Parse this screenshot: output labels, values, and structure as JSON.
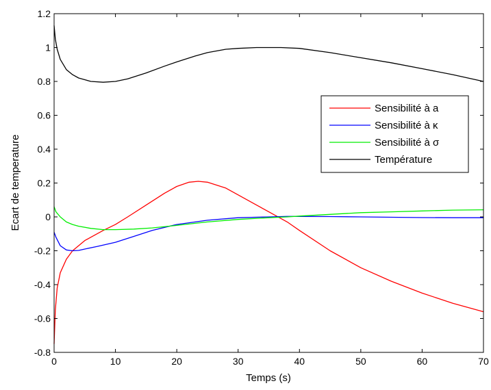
{
  "chart_data": {
    "type": "line",
    "title": "",
    "xlabel": "Temps (s)",
    "ylabel": "Ecart de temperature",
    "xlim": [
      0,
      70
    ],
    "ylim": [
      -0.8,
      1.2
    ],
    "xticks": [
      0,
      10,
      20,
      30,
      40,
      50,
      60,
      70
    ],
    "yticks": [
      -0.8,
      -0.6,
      -0.4,
      -0.2,
      0,
      0.2,
      0.4,
      0.6,
      0.8,
      1,
      1.2
    ],
    "grid": false,
    "legend_position": "right",
    "series": [
      {
        "name": "Sensibilité à a",
        "color": "#ff0000",
        "x": [
          0,
          0.2,
          0.5,
          1,
          2,
          3,
          4,
          5,
          6,
          8,
          10,
          12,
          15,
          18,
          20,
          22,
          23.5,
          25,
          28,
          30,
          33,
          35,
          38,
          40,
          45,
          50,
          55,
          60,
          65,
          70
        ],
        "y": [
          -0.75,
          -0.55,
          -0.42,
          -0.33,
          -0.25,
          -0.2,
          -0.17,
          -0.14,
          -0.12,
          -0.08,
          -0.045,
          0.0,
          0.07,
          0.14,
          0.18,
          0.205,
          0.21,
          0.205,
          0.17,
          0.13,
          0.07,
          0.03,
          -0.03,
          -0.08,
          -0.2,
          -0.3,
          -0.38,
          -0.45,
          -0.51,
          -0.56
        ]
      },
      {
        "name": "Sensibilité à κ",
        "color": "#0000ff",
        "x": [
          0,
          0.3,
          1,
          2,
          3,
          4,
          5,
          7,
          10,
          13,
          16,
          20,
          25,
          30,
          35,
          38,
          40,
          45,
          50,
          55,
          60,
          65,
          70
        ],
        "y": [
          -0.09,
          -0.12,
          -0.17,
          -0.195,
          -0.2,
          -0.198,
          -0.19,
          -0.175,
          -0.15,
          -0.115,
          -0.08,
          -0.045,
          -0.02,
          -0.005,
          0.0,
          0.003,
          0.003,
          0.002,
          0.0,
          -0.002,
          -0.004,
          -0.005,
          -0.005
        ]
      },
      {
        "name": "Sensibilité à σ",
        "color": "#00ee00",
        "x": [
          0,
          0.3,
          1,
          2,
          3,
          4,
          6,
          8,
          10,
          13,
          16,
          20,
          25,
          30,
          35,
          38,
          40,
          45,
          50,
          55,
          60,
          65,
          70
        ],
        "y": [
          0.06,
          0.03,
          0.0,
          -0.03,
          -0.045,
          -0.055,
          -0.068,
          -0.075,
          -0.075,
          -0.072,
          -0.065,
          -0.05,
          -0.03,
          -0.015,
          -0.005,
          0.0,
          0.005,
          0.015,
          0.025,
          0.03,
          0.035,
          0.04,
          0.042
        ]
      },
      {
        "name": "Température",
        "color": "#000000",
        "x": [
          0,
          0.2,
          0.5,
          1,
          2,
          3,
          4,
          5,
          6,
          8,
          10,
          12,
          15,
          18,
          20,
          23,
          25,
          28,
          30,
          33,
          35,
          37,
          40,
          45,
          50,
          55,
          60,
          65,
          70
        ],
        "y": [
          1.13,
          1.05,
          0.99,
          0.93,
          0.87,
          0.84,
          0.82,
          0.81,
          0.8,
          0.795,
          0.8,
          0.815,
          0.85,
          0.89,
          0.915,
          0.95,
          0.97,
          0.99,
          0.995,
          1.0,
          1.0,
          1.0,
          0.995,
          0.97,
          0.94,
          0.91,
          0.875,
          0.84,
          0.8
        ]
      }
    ]
  }
}
